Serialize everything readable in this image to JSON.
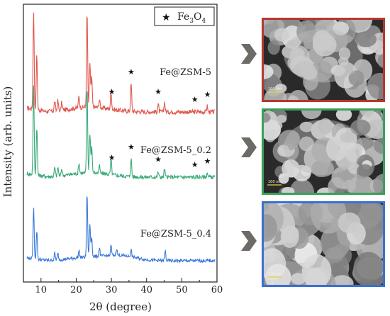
{
  "chart_data": {
    "type": "line",
    "xlabel": "2θ (degree)",
    "ylabel": "Intensity (arb. units)",
    "xlim": [
      5,
      60
    ],
    "x_ticks": [
      10,
      20,
      30,
      40,
      50,
      60
    ],
    "grid": false,
    "legend": {
      "marker": "★",
      "label_main": "Fe",
      "label_sub1": "3",
      "label_mid": "O",
      "label_sub2": "4",
      "placement": "top-right"
    },
    "series": [
      {
        "name": "Fe@ZSM-5",
        "color": "#e0584f",
        "peaks": [
          {
            "x": 7.9,
            "h": 1.0
          },
          {
            "x": 8.8,
            "h": 0.55
          },
          {
            "x": 13.9,
            "h": 0.1
          },
          {
            "x": 14.8,
            "h": 0.1
          },
          {
            "x": 15.9,
            "h": 0.08
          },
          {
            "x": 20.8,
            "h": 0.12
          },
          {
            "x": 23.1,
            "h": 0.97
          },
          {
            "x": 23.9,
            "h": 0.45
          },
          {
            "x": 24.4,
            "h": 0.3
          },
          {
            "x": 26.6,
            "h": 0.08
          },
          {
            "x": 29.9,
            "h": 0.18
          },
          {
            "x": 35.6,
            "h": 0.28
          },
          {
            "x": 43.3,
            "h": 0.08
          },
          {
            "x": 45.1,
            "h": 0.1
          },
          {
            "x": 57.2,
            "h": 0.06
          }
        ],
        "stars_x": [
          30.1,
          35.6,
          43.3,
          53.7,
          57.3
        ]
      },
      {
        "name": "Fe@ZSM-5_0.2",
        "color": "#3aaa79",
        "peaks": [
          {
            "x": 7.9,
            "h": 1.0
          },
          {
            "x": 8.8,
            "h": 0.55
          },
          {
            "x": 13.9,
            "h": 0.1
          },
          {
            "x": 14.8,
            "h": 0.1
          },
          {
            "x": 15.9,
            "h": 0.08
          },
          {
            "x": 20.8,
            "h": 0.12
          },
          {
            "x": 23.1,
            "h": 0.97
          },
          {
            "x": 23.9,
            "h": 0.45
          },
          {
            "x": 24.4,
            "h": 0.3
          },
          {
            "x": 26.6,
            "h": 0.08
          },
          {
            "x": 29.9,
            "h": 0.18
          },
          {
            "x": 35.6,
            "h": 0.2
          },
          {
            "x": 43.3,
            "h": 0.06
          },
          {
            "x": 45.1,
            "h": 0.09
          },
          {
            "x": 57.2,
            "h": 0.05
          }
        ],
        "stars_x": [
          30.1,
          35.6,
          43.3,
          53.7,
          57.3
        ]
      },
      {
        "name": "Fe@ZSM-5_0.4",
        "color": "#3b78d8",
        "peaks": [
          {
            "x": 7.9,
            "h": 0.72
          },
          {
            "x": 8.8,
            "h": 0.4
          },
          {
            "x": 13.9,
            "h": 0.1
          },
          {
            "x": 14.8,
            "h": 0.09
          },
          {
            "x": 20.8,
            "h": 0.1
          },
          {
            "x": 23.1,
            "h": 0.9
          },
          {
            "x": 23.9,
            "h": 0.45
          },
          {
            "x": 24.4,
            "h": 0.28
          },
          {
            "x": 26.6,
            "h": 0.12
          },
          {
            "x": 29.9,
            "h": 0.14
          },
          {
            "x": 31.5,
            "h": 0.1
          },
          {
            "x": 35.6,
            "h": 0.1
          },
          {
            "x": 45.3,
            "h": 0.14
          }
        ],
        "stars_x": []
      }
    ]
  },
  "sem_panels": [
    {
      "scale_label": "100 nm",
      "border_color": "#b23a2e"
    },
    {
      "scale_label": "100 nm",
      "border_color": "#3aa05a"
    },
    {
      "scale_label": "100 nm",
      "border_color": "#3b6fd0"
    }
  ],
  "arrow_color": "#6e6a66"
}
